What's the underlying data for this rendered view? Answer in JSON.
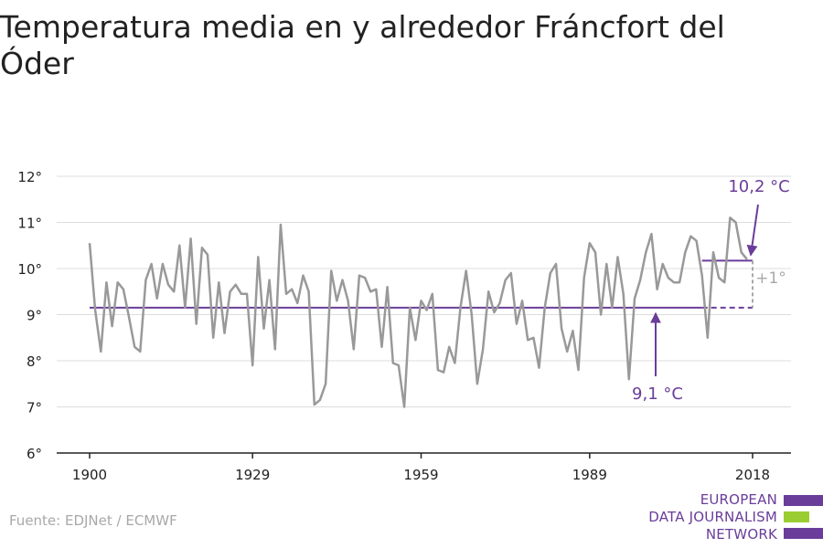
{
  "title": "Temperatura media en y alrededor Fráncfort del Óder",
  "source": "Fuente: EDJNet / ECMWF",
  "logo": {
    "lines": [
      "EUROPEAN",
      "DATA JOURNALISM",
      "NETWORK"
    ],
    "colors": {
      "bars": "#6a3d9a",
      "accent": "#9acd32"
    }
  },
  "colors": {
    "series": "#999999",
    "baseline": "#6a3d9a",
    "grid": "#dddddd",
    "axis": "#222222",
    "annotation": "#6a3d9a",
    "delta": "#a8a8a8"
  },
  "chart_data": {
    "type": "line",
    "x_ticks": [
      1900,
      1929,
      1959,
      1989,
      2018
    ],
    "y_ticks": [
      6,
      7,
      8,
      9,
      10,
      11,
      12
    ],
    "y_tick_labels": [
      "6°",
      "7°",
      "8°",
      "9°",
      "10°",
      "11°",
      "12°"
    ],
    "ylim": [
      6,
      12
    ],
    "xlim": [
      1900,
      2018
    ],
    "grid": true,
    "series": [
      {
        "x_start": 1900,
        "values": [
          10.55,
          9.1,
          8.2,
          9.7,
          8.75,
          9.7,
          9.55,
          8.95,
          8.3,
          8.2,
          9.75,
          10.1,
          9.35,
          10.1,
          9.65,
          9.5,
          10.5,
          9.15,
          10.65,
          8.8,
          10.45,
          10.3,
          8.5,
          9.7,
          8.6,
          9.5,
          9.65,
          9.45,
          9.45,
          7.9,
          10.25,
          8.7,
          9.75,
          8.25,
          10.95,
          9.45,
          9.55,
          9.25,
          9.85,
          9.5,
          7.05,
          7.15,
          7.5,
          9.95,
          9.3,
          9.75,
          9.3,
          8.25,
          9.85,
          9.8,
          9.5,
          9.55,
          8.3,
          9.6,
          7.95,
          7.9,
          7.0,
          9.15,
          8.45,
          9.3,
          9.1,
          9.45,
          7.8,
          7.75,
          8.3,
          7.95,
          9.15,
          9.95,
          9.0,
          7.5,
          8.25,
          9.5,
          9.05,
          9.25,
          9.75,
          9.9,
          8.8,
          9.3,
          8.45,
          8.5,
          7.85,
          9.15,
          9.9,
          10.1,
          8.7,
          8.2,
          8.65,
          7.8,
          9.8,
          10.55,
          10.35,
          9.0,
          10.1,
          9.15,
          10.25,
          9.45,
          7.6,
          9.35,
          9.75,
          10.35,
          10.75,
          9.55,
          10.1,
          9.8,
          9.7,
          9.7,
          10.35,
          10.7,
          10.6,
          9.85,
          8.5,
          10.35,
          9.8,
          9.7,
          11.1,
          11.0,
          10.35,
          10.2
        ]
      }
    ],
    "baseline_mean": {
      "label": "9,1 °C",
      "value": 9.15,
      "from": 1900,
      "to": 2018,
      "solid_to": 2009
    },
    "recent_mean": {
      "label": "10,2 °C",
      "value": 10.17,
      "from": 2009,
      "to": 2018
    },
    "delta_label": "+1°"
  }
}
